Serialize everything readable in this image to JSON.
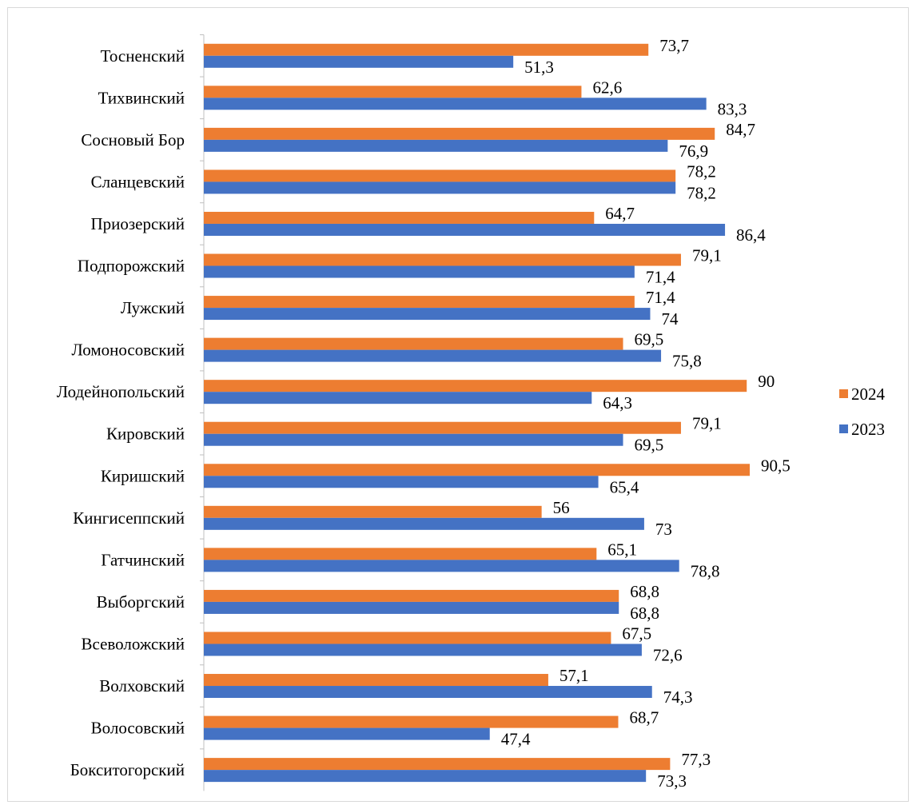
{
  "chart_data": {
    "type": "bar",
    "orientation": "horizontal",
    "categories": [
      "Тосненский",
      "Тихвинский",
      "Сосновый Бор",
      "Сланцевский",
      "Приозерский",
      "Подпорожский",
      "Лужский",
      "Ломоносовский",
      "Лодейнопольский",
      "Кировский",
      "Киришский",
      "Кингисеппский",
      "Гатчинский",
      "Выборгский",
      "Всеволожский",
      "Волховский",
      "Волосовский",
      "Бокситогорский"
    ],
    "series": [
      {
        "name": "2024",
        "color": "#ED7D31",
        "values": [
          73.7,
          62.6,
          84.7,
          78.2,
          64.7,
          79.1,
          71.4,
          69.5,
          90,
          79.1,
          90.5,
          56,
          65.1,
          68.8,
          67.5,
          57.1,
          68.7,
          77.3
        ],
        "labels": [
          "73,7",
          "62,6",
          "84,7",
          "78,2",
          "64,7",
          "79,1",
          "71,4",
          "69,5",
          "90",
          "79,1",
          "90,5",
          "56",
          "65,1",
          "68,8",
          "67,5",
          "57,1",
          "68,7",
          "77,3"
        ]
      },
      {
        "name": "2023",
        "color": "#4472C4",
        "values": [
          51.3,
          83.3,
          76.9,
          78.2,
          86.4,
          71.4,
          74,
          75.8,
          64.3,
          69.5,
          65.4,
          73,
          78.8,
          68.8,
          72.6,
          74.3,
          47.4,
          73.3
        ],
        "labels": [
          "51,3",
          "83,3",
          "76,9",
          "78,2",
          "86,4",
          "71,4",
          "74",
          "75,8",
          "64,3",
          "69,5",
          "65,4",
          "73",
          "78,8",
          "68,8",
          "72,6",
          "74,3",
          "47,4",
          "73,3"
        ]
      }
    ],
    "xlim": [
      0,
      100
    ],
    "grid": false,
    "legend_position": "right"
  }
}
